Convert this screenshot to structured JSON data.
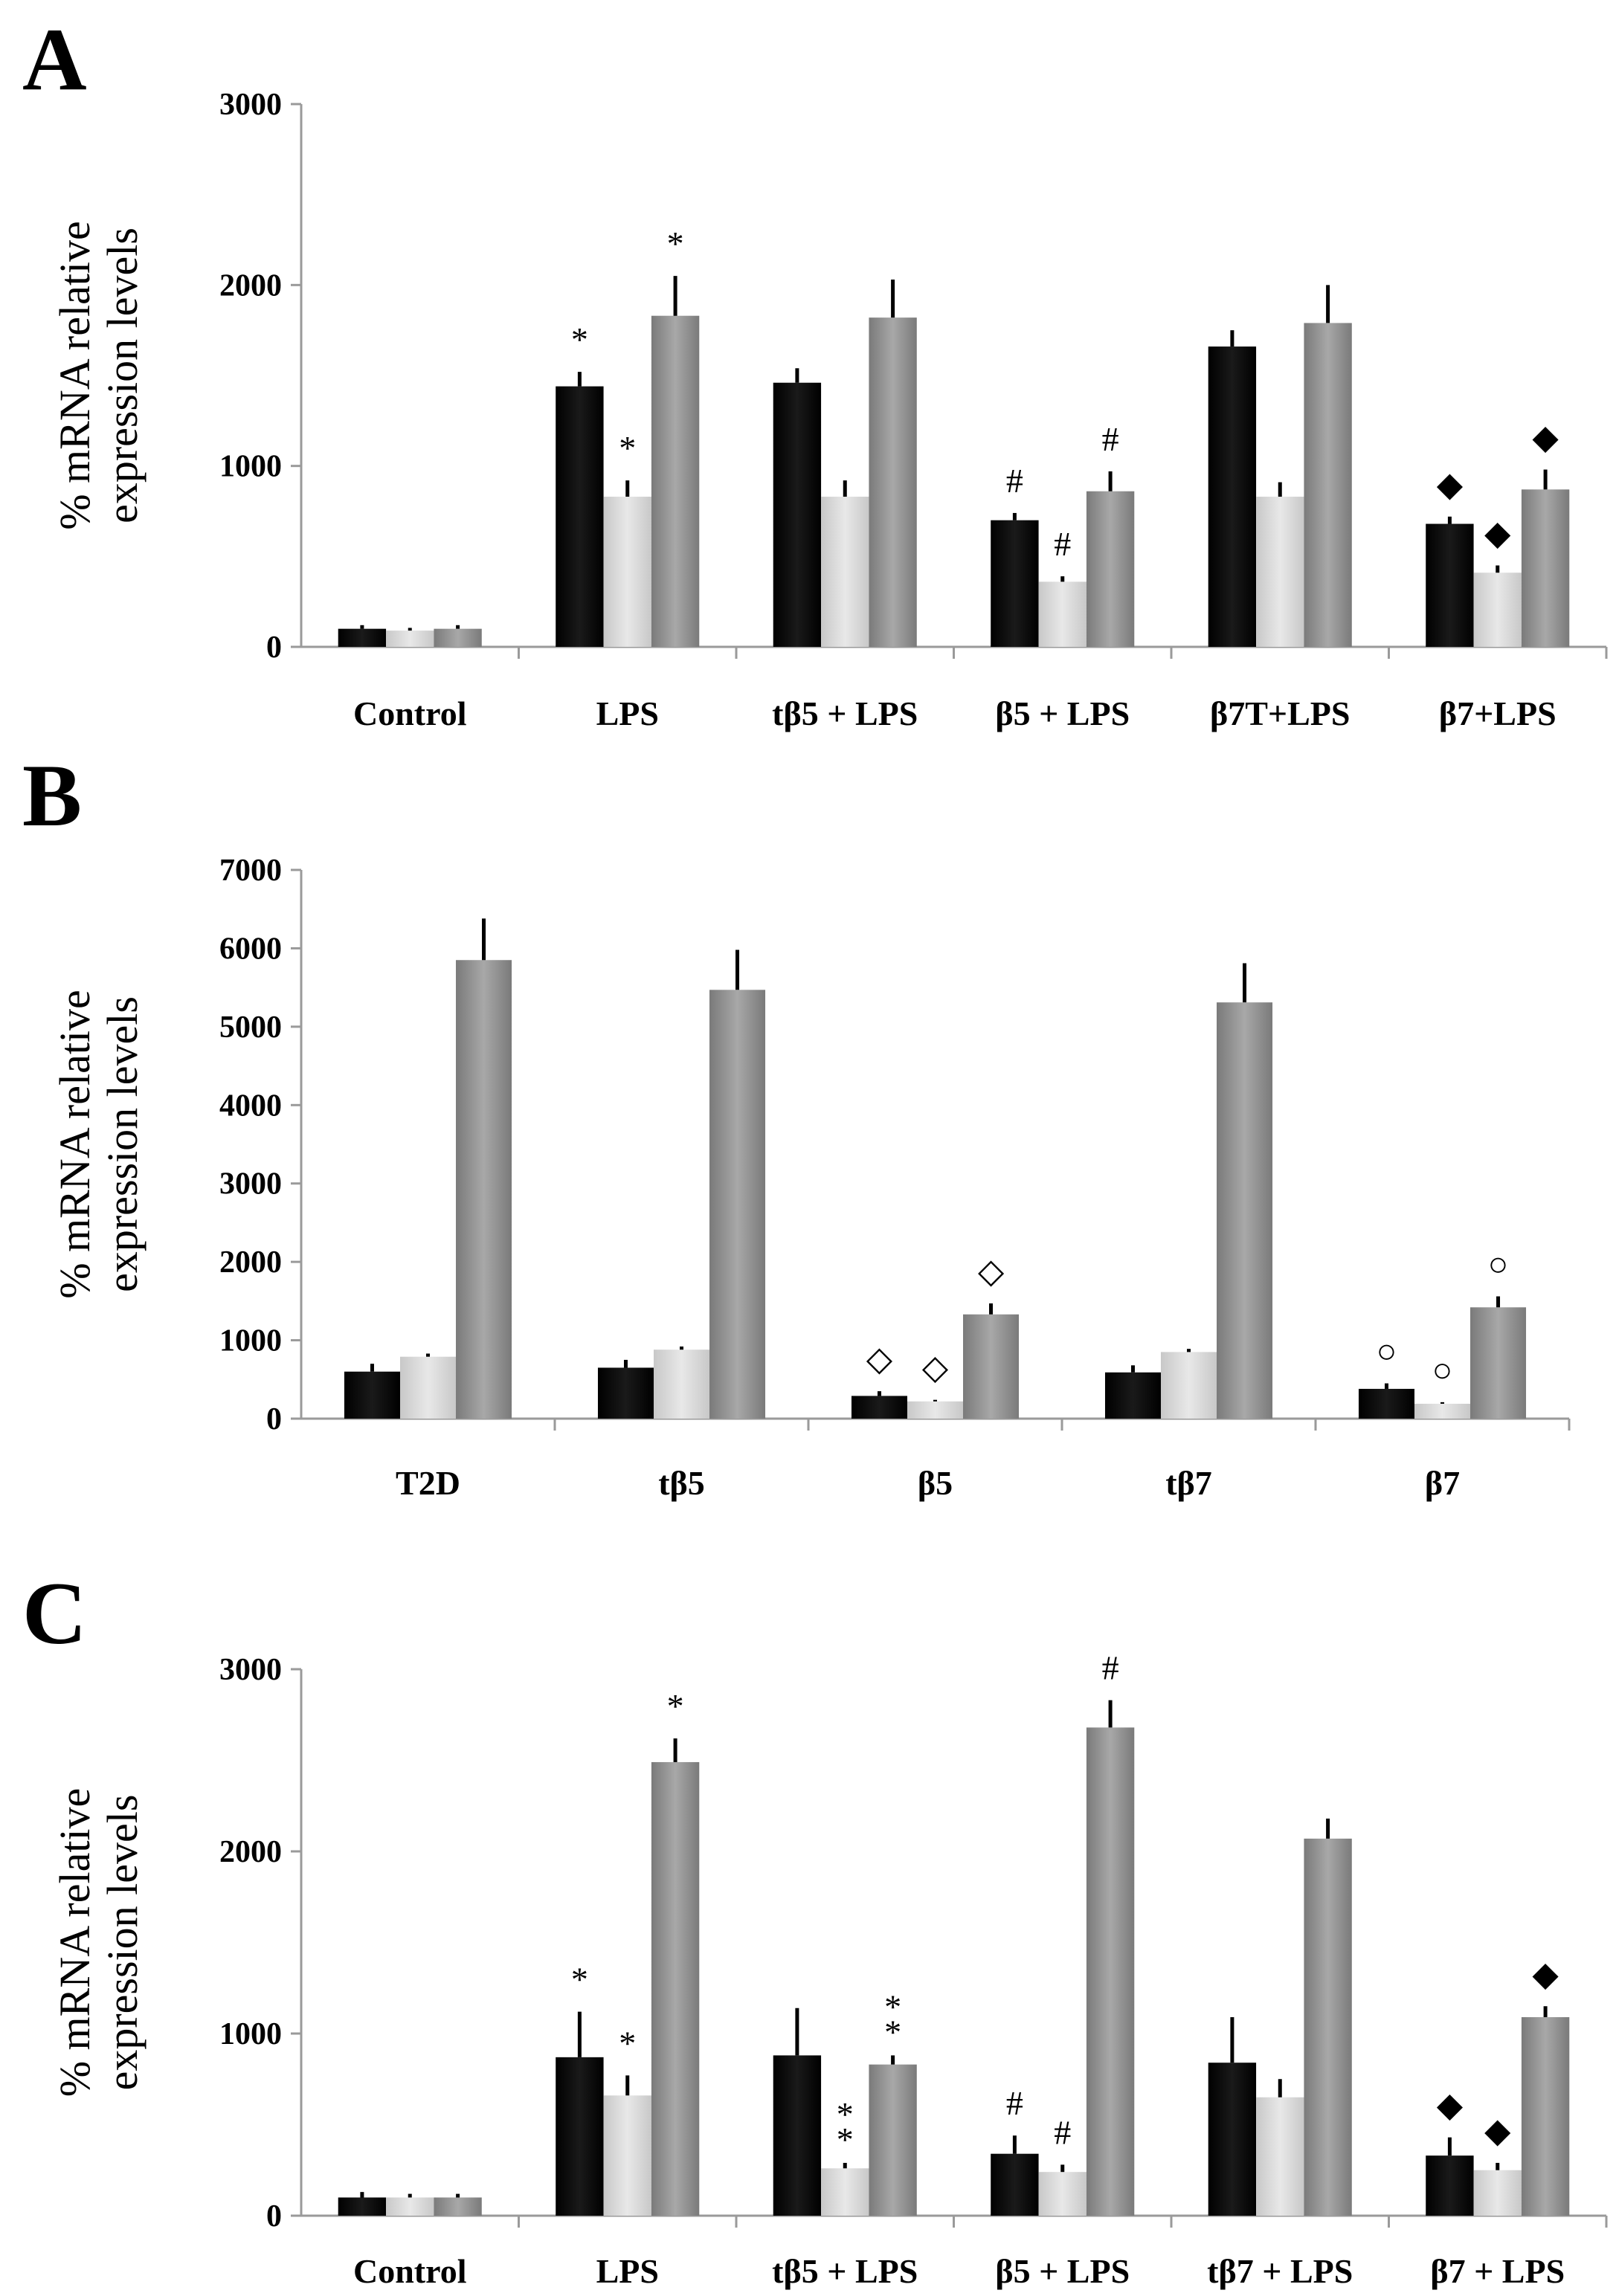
{
  "series_colors": [
    "#000000",
    "#dedede",
    "#9a9a9a"
  ],
  "chart_data": [
    {
      "panel": "A",
      "type": "bar",
      "ylabel_line1": "% mRNA relative",
      "ylabel_line2": "expression levels",
      "ylim": [
        0,
        3000
      ],
      "yticks": [
        0,
        1000,
        2000,
        3000
      ],
      "categories": [
        "Control",
        "LPS",
        "tβ5 + LPS",
        "β5 + LPS",
        "β7T+LPS",
        "β7+LPS"
      ],
      "series": [
        {
          "name": "series 1",
          "values": [
            100,
            1440,
            1460,
            700,
            1660,
            680
          ],
          "errors": [
            20,
            80,
            80,
            40,
            90,
            40
          ]
        },
        {
          "name": "series 2",
          "values": [
            90,
            830,
            830,
            360,
            830,
            410
          ],
          "errors": [
            15,
            90,
            90,
            30,
            80,
            40
          ]
        },
        {
          "name": "series 3",
          "values": [
            100,
            1830,
            1820,
            860,
            1790,
            870
          ],
          "errors": [
            20,
            220,
            210,
            110,
            210,
            110
          ]
        }
      ],
      "markers": [
        {
          "category": 1,
          "series": 0,
          "symbol": "*"
        },
        {
          "category": 1,
          "series": 1,
          "symbol": "*"
        },
        {
          "category": 1,
          "series": 2,
          "symbol": "*"
        },
        {
          "category": 3,
          "series": 0,
          "symbol": "#"
        },
        {
          "category": 3,
          "series": 1,
          "symbol": "#"
        },
        {
          "category": 3,
          "series": 2,
          "symbol": "#"
        },
        {
          "category": 5,
          "series": 0,
          "symbol": "◆"
        },
        {
          "category": 5,
          "series": 1,
          "symbol": "◆"
        },
        {
          "category": 5,
          "series": 2,
          "symbol": "◆"
        }
      ]
    },
    {
      "panel": "B",
      "type": "bar",
      "ylabel_line1": "% mRNA relative",
      "ylabel_line2": "expression levels",
      "ylim": [
        0,
        7000
      ],
      "yticks": [
        0,
        1000,
        2000,
        3000,
        4000,
        5000,
        6000,
        7000
      ],
      "categories": [
        "T2D",
        "tβ5",
        "β5",
        "tβ7",
        "β7"
      ],
      "series": [
        {
          "name": "series 1",
          "values": [
            600,
            650,
            290,
            590,
            380
          ],
          "errors": [
            100,
            100,
            60,
            90,
            70
          ]
        },
        {
          "name": "series 2",
          "values": [
            790,
            880,
            220,
            850,
            190
          ],
          "errors": [
            40,
            40,
            20,
            40,
            20
          ]
        },
        {
          "name": "series 3",
          "values": [
            5850,
            5470,
            1330,
            5310,
            1420
          ],
          "errors": [
            530,
            510,
            140,
            500,
            140
          ]
        }
      ],
      "markers": [
        {
          "category": 2,
          "series": 0,
          "symbol": "◇"
        },
        {
          "category": 2,
          "series": 1,
          "symbol": "◇"
        },
        {
          "category": 2,
          "series": 2,
          "symbol": "◇"
        },
        {
          "category": 4,
          "series": 0,
          "symbol": "○"
        },
        {
          "category": 4,
          "series": 1,
          "symbol": "○"
        },
        {
          "category": 4,
          "series": 2,
          "symbol": "○"
        }
      ]
    },
    {
      "panel": "C",
      "type": "bar",
      "ylabel_line1": "% mRNA relative",
      "ylabel_line2": "expression levels",
      "ylim": [
        0,
        3000
      ],
      "yticks": [
        0,
        1000,
        2000,
        3000
      ],
      "categories": [
        "Control",
        "LPS",
        "tβ5 + LPS",
        "β5 + LPS",
        "tβ7 + LPS",
        "β7 + LPS"
      ],
      "series": [
        {
          "name": "series 1",
          "values": [
            100,
            870,
            880,
            340,
            840,
            330
          ],
          "errors": [
            30,
            250,
            260,
            100,
            250,
            100
          ]
        },
        {
          "name": "series 2",
          "values": [
            100,
            660,
            260,
            240,
            650,
            250
          ],
          "errors": [
            20,
            110,
            30,
            40,
            100,
            40
          ]
        },
        {
          "name": "series 3",
          "values": [
            100,
            2490,
            830,
            2680,
            2070,
            1090
          ],
          "errors": [
            20,
            130,
            50,
            150,
            110,
            60
          ]
        }
      ],
      "markers": [
        {
          "category": 1,
          "series": 0,
          "symbol": "*"
        },
        {
          "category": 1,
          "series": 1,
          "symbol": "*"
        },
        {
          "category": 1,
          "series": 2,
          "symbol": "*"
        },
        {
          "category": 2,
          "series": 1,
          "symbol": "**"
        },
        {
          "category": 2,
          "series": 2,
          "symbol": "**"
        },
        {
          "category": 3,
          "series": 0,
          "symbol": "#"
        },
        {
          "category": 3,
          "series": 1,
          "symbol": "#"
        },
        {
          "category": 3,
          "series": 2,
          "symbol": "#"
        },
        {
          "category": 5,
          "series": 0,
          "symbol": "◆"
        },
        {
          "category": 5,
          "series": 1,
          "symbol": "◆"
        },
        {
          "category": 5,
          "series": 2,
          "symbol": "◆"
        }
      ]
    }
  ]
}
